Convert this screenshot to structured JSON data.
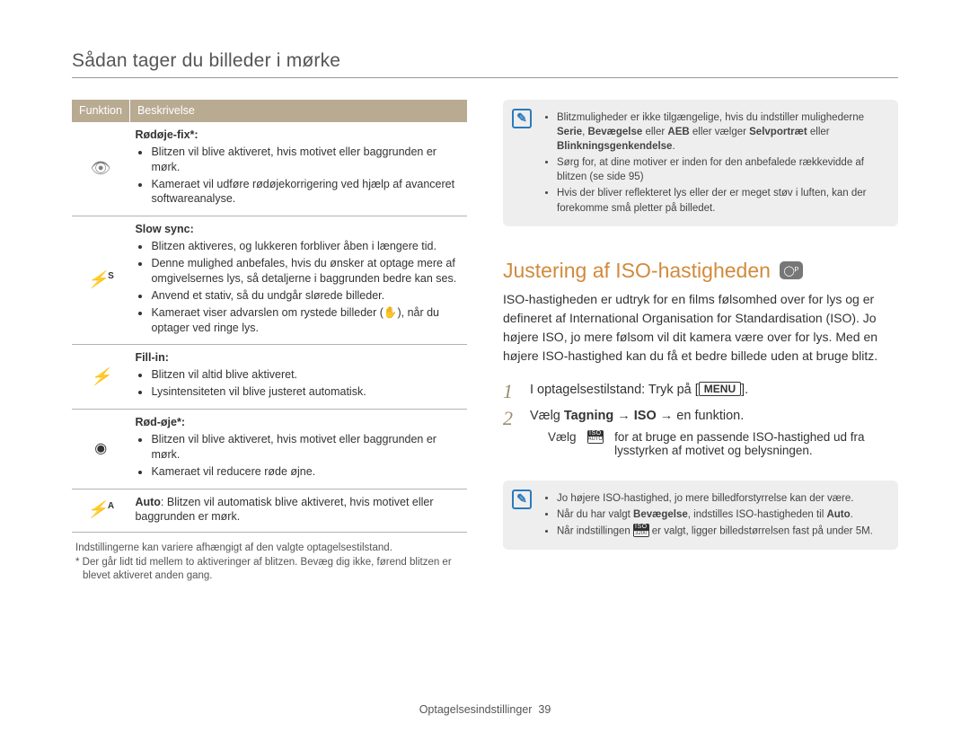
{
  "pageTitle": "Sådan tager du billeder i mørke",
  "tableHeaders": {
    "col1": "Funktion",
    "col2": "Beskrivelse"
  },
  "rows": [
    {
      "iconGlyph": "👁",
      "title": "Rødøje-fix*:",
      "bullets": [
        "Blitzen vil blive aktiveret, hvis motivet eller baggrunden er mørk.",
        "Kameraet vil udføre rødøjekorrigering ved hjælp af avanceret softwareanalyse."
      ]
    },
    {
      "iconGlyph": "⚡S",
      "title": "Slow sync:",
      "bullets": [
        "Blitzen aktiveres, og lukkeren forbliver åben i længere tid.",
        "Denne mulighed anbefales, hvis du ønsker at optage mere af omgivelsernes lys, så detaljerne i baggrunden bedre kan ses.",
        "Anvend et stativ, så du undgår slørede billeder.",
        "Kameraet viser advarslen om rystede billeder (✋), når du optager ved ringe lys."
      ]
    },
    {
      "iconGlyph": "⚡",
      "title": "Fill-in:",
      "bullets": [
        "Blitzen vil altid blive aktiveret.",
        "Lysintensiteten vil blive justeret automatisk."
      ]
    },
    {
      "iconGlyph": "👁",
      "title": "Rød-øje*:",
      "bullets": [
        "Blitzen vil blive aktiveret, hvis motivet eller baggrunden er mørk.",
        "Kameraet vil reducere røde øjne."
      ]
    },
    {
      "iconGlyph": "⚡A",
      "title": "Auto",
      "plain": ": Blitzen vil automatisk blive aktiveret, hvis motivet eller baggrunden er mørk."
    }
  ],
  "footnote1": "Indstillingerne kan variere afhængigt af den valgte optagelsestilstand.",
  "footnote2": "* Der går lidt tid mellem to aktiveringer af blitzen. Bevæg dig ikke, førend blitzen er blevet aktiveret anden gang.",
  "note1": {
    "bullets_html": [
      "Blitzmuligheder er ikke tilgængelige, hvis du indstiller mulighederne <b>Serie</b>, <b>Bevægelse</b> eller <b>AEB</b> eller vælger <b>Selvportræt</b> eller <b>Blinkningsgenkendelse</b>.",
      "Sørg for, at dine motiver er inden for den anbefalede rækkevidde af blitzen (se side 95)",
      "Hvis der bliver reflekteret lys eller der er meget støv i luften, kan der forekomme små pletter på billedet."
    ]
  },
  "sectionTitle": "Justering af ISO-hastigheden",
  "sectionBody": "ISO-hastigheden er udtryk for en films følsomhed over for lys og er defineret af International Organisation for Standardisation (ISO). Jo højere ISO, jo mere følsom vil dit kamera være over for lys. Med en højere ISO-hastighed kan du få et bedre billede uden at bruge blitz.",
  "steps": {
    "s1_prefix": "I optagelsestilstand: Tryk på [",
    "s1_button": "MENU",
    "s1_suffix": "].",
    "s2_html": "Vælg <b>Tagning</b> → <b>ISO</b> → en funktion.",
    "s2_sub_prefix": "Vælg ",
    "s2_sub_chip_top": "ISO",
    "s2_sub_chip_bot": "AUTO",
    "s2_sub_suffix": " for at bruge en passende ISO-hastighed ud fra lysstyrken af motivet og belysningen."
  },
  "note2": {
    "b1": "Jo højere ISO-hastighed, jo mere billedforstyrrelse kan der være.",
    "b2_html": "Når du har valgt <b>Bevægelse</b>, indstilles ISO-hastigheden til <b>Auto</b>.",
    "b3_prefix": "Når indstillingen ",
    "b3_chip_top": "ISO",
    "b3_chip_bot": "3200",
    "b3_suffix": " er valgt, ligger billedstørrelsen fast på under 5M."
  },
  "footer": {
    "label": "Optagelsesindstillinger",
    "page": "39"
  }
}
